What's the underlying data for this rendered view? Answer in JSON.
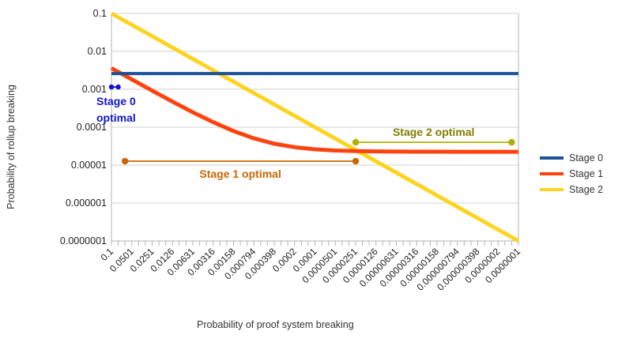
{
  "background": "#ffffff",
  "chart_data": {
    "type": "line",
    "title": "",
    "xlabel": "Probability of proof system breaking",
    "ylabel": "Probability of rollup breaking",
    "x_scale": "log",
    "y_scale": "log",
    "x_descending": true,
    "xlim": [
      0.1,
      1e-07
    ],
    "ylim": [
      1e-07,
      0.1
    ],
    "grid": "horizontal-only",
    "legend_position": "right-middle",
    "x_ticks": [
      "0.1",
      "0.0501",
      "0.0251",
      "0.0126",
      "0.00631",
      "0.00316",
      "0.00158",
      "0.000794",
      "0.000398",
      "0.0002",
      "0.0001",
      "0.0000501",
      "0.0000251",
      "0.0000126",
      "0.00000631",
      "0.00000316",
      "0.00000158",
      "0.000000794",
      "0.000000398",
      "0.0000002",
      "0.0000001"
    ],
    "y_ticks": [
      "0.1",
      "0.01",
      "0.001",
      "0.0001",
      "0.00001",
      "0.000001",
      "0.0000001"
    ],
    "axis_color": "#b3b3b3",
    "gridline_color": "#d0d0d0",
    "tick_label_color": "#222222",
    "series": [
      {
        "name": "Stage 0",
        "color": "#1C5398",
        "width": 4,
        "points": [
          [
            0.1,
            0.0026
          ],
          [
            1e-07,
            0.0026
          ]
        ]
      },
      {
        "name": "Stage 1",
        "color": "#FF420E",
        "width": 5,
        "points": [
          [
            0.1,
            0.0036
          ],
          [
            0.0501,
            0.00182
          ],
          [
            0.0251,
            0.00092
          ],
          [
            0.0126,
            0.000474
          ],
          [
            0.00631,
            0.000248
          ],
          [
            0.00316,
            0.000136
          ],
          [
            0.00158,
            7.91e-05
          ],
          [
            0.000794,
            5.09e-05
          ],
          [
            0.000398,
            3.67e-05
          ],
          [
            0.0002,
            2.97e-05
          ],
          [
            0.0001,
            2.61e-05
          ],
          [
            5.01e-05,
            2.43e-05
          ],
          [
            2.51e-05,
            2.34e-05
          ],
          [
            1.26e-05,
            2.3e-05
          ],
          [
            6.31e-06,
            2.27e-05
          ],
          [
            3.16e-06,
            2.26e-05
          ],
          [
            1.58e-06,
            2.26e-05
          ],
          [
            7.94e-07,
            2.25e-05
          ],
          [
            3.98e-07,
            2.25e-05
          ],
          [
            2e-07,
            2.25e-05
          ],
          [
            1e-07,
            2.25e-05
          ]
        ]
      },
      {
        "name": "Stage 2",
        "color": "#FFD320",
        "width": 5,
        "points": [
          [
            0.1,
            0.1
          ],
          [
            1e-07,
            1e-07
          ]
        ]
      }
    ],
    "annotations": [
      {
        "id": "stage-0-optimal",
        "label": "Stage 0 optimal",
        "label_lines": [
          "Stage 0",
          "optimal"
        ],
        "line_color": "#1414CC",
        "text_color": "#1414CC",
        "x1": 0.1,
        "x2": 0.0794,
        "y": 0.00115,
        "dot_radius": 3.2,
        "label_anchor": "below-left"
      },
      {
        "id": "stage-1-optimal",
        "label": "Stage 1 optimal",
        "label_lines": [
          "Stage 1 optimal"
        ],
        "line_color": "#CC6600",
        "text_color": "#CC6600",
        "x1": 0.0631,
        "x2": 2.51e-05,
        "y": 1.27e-05,
        "dot_radius": 4.2,
        "label_anchor": "below-center"
      },
      {
        "id": "stage-2-optimal",
        "label": "Stage 2 optimal",
        "label_lines": [
          "Stage 2 optimal"
        ],
        "line_color": "#B0B000",
        "text_color": "#7F7F00",
        "x1": 2.51e-05,
        "x2": 1.26e-07,
        "y": 4e-05,
        "dot_radius": 4.2,
        "label_anchor": "above-center"
      }
    ]
  }
}
